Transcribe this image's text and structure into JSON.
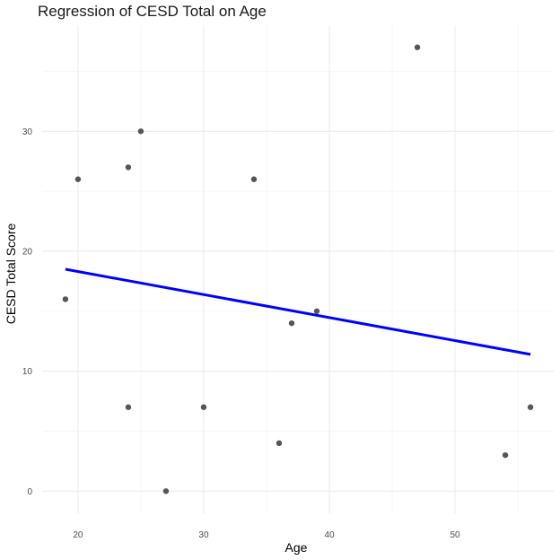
{
  "chart_data": {
    "type": "scatter",
    "title": "Regression of CESD Total on Age",
    "xlabel": "Age",
    "ylabel": "CESD Total Score",
    "xlim": [
      17.15,
      57.85
    ],
    "ylim": [
      -1.85,
      38.85
    ],
    "xticks": [
      20,
      30,
      40,
      50
    ],
    "yticks": [
      0,
      10,
      20,
      30
    ],
    "grid": true,
    "points": [
      {
        "x": 19,
        "y": 16
      },
      {
        "x": 20,
        "y": 26
      },
      {
        "x": 24,
        "y": 27
      },
      {
        "x": 24,
        "y": 7
      },
      {
        "x": 25,
        "y": 30
      },
      {
        "x": 27,
        "y": 0
      },
      {
        "x": 30,
        "y": 7
      },
      {
        "x": 34,
        "y": 26
      },
      {
        "x": 36,
        "y": 4
      },
      {
        "x": 37,
        "y": 14
      },
      {
        "x": 39,
        "y": 15
      },
      {
        "x": 47,
        "y": 37
      },
      {
        "x": 54,
        "y": 3
      },
      {
        "x": 56,
        "y": 7
      }
    ],
    "regression_line": {
      "x": [
        19,
        56
      ],
      "y": [
        18.5,
        11.4
      ]
    },
    "colors": {
      "points": "#4d4d4d",
      "line": "#0000ff",
      "grid": "#ebebeb"
    }
  }
}
